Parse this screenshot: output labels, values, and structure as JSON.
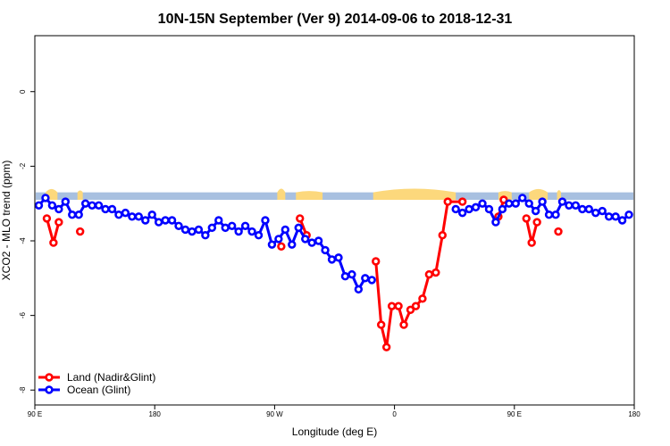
{
  "chart_data": {
    "type": "line",
    "title": "10N-15N September (Ver 9)   2014-09-06 to 2018-12-31",
    "xlabel": "Longitude (deg E)",
    "ylabel": "XCO2 - MLO trend (ppm)",
    "x_ticks": [
      {
        "x": 0,
        "label": "90 E"
      },
      {
        "x": 90,
        "label": "180"
      },
      {
        "x": 180,
        "label": "90 W"
      },
      {
        "x": 270,
        "label": "0"
      },
      {
        "x": 360,
        "label": "90 E"
      },
      {
        "x": 450,
        "label": "180"
      }
    ],
    "y_ticks": [
      0,
      -2,
      -4,
      -6,
      -8
    ],
    "xlim": [
      0,
      450
    ],
    "ylim": [
      -8.4,
      1.5
    ],
    "grid": false,
    "legend_placement": "bottom-left",
    "band": {
      "y_min": -2.9,
      "y_max": -2.7,
      "color": "#a8c0e0",
      "highlight_color": "#fcd87c",
      "highlight_segments": [
        [
          8,
          17,
          0.18
        ],
        [
          32,
          36,
          0.1
        ],
        [
          182,
          188,
          0.2
        ],
        [
          196,
          216,
          0.07
        ],
        [
          254,
          316,
          0.2
        ],
        [
          348,
          358,
          0.07
        ],
        [
          371,
          385,
          0.18
        ],
        [
          392,
          395,
          0.12
        ]
      ]
    },
    "series": [
      {
        "name": "Land (Nadir&Glint)",
        "color": "#ff0000",
        "segments": [
          [
            [
              9,
              -3.4
            ],
            [
              14,
              -4.05
            ],
            [
              18,
              -3.5
            ]
          ],
          [
            [
              34,
              -3.75
            ]
          ],
          [
            [
              185,
              -4.15
            ]
          ],
          [
            [
              199,
              -3.4
            ],
            [
              204,
              -3.85
            ]
          ],
          [
            [
              256,
              -4.55
            ],
            [
              260,
              -6.25
            ],
            [
              264,
              -6.85
            ],
            [
              268,
              -5.75
            ],
            [
              273,
              -5.75
            ],
            [
              277,
              -6.25
            ],
            [
              282,
              -5.85
            ],
            [
              286,
              -5.75
            ],
            [
              291,
              -5.55
            ],
            [
              296,
              -4.9
            ],
            [
              301,
              -4.85
            ],
            [
              306,
              -3.85
            ],
            [
              310,
              -2.95
            ],
            [
              321,
              -2.95
            ]
          ],
          [
            [
              348,
              -3.35
            ],
            [
              352,
              -2.9
            ]
          ],
          [
            [
              369,
              -3.4
            ],
            [
              373,
              -4.05
            ],
            [
              377,
              -3.5
            ]
          ],
          [
            [
              393,
              -3.75
            ]
          ]
        ]
      },
      {
        "name": "Ocean (Glint)",
        "color": "#0000ff",
        "segments": [
          [
            [
              3,
              -3.05
            ],
            [
              8,
              -2.85
            ],
            [
              13,
              -3.05
            ],
            [
              18,
              -3.15
            ],
            [
              23,
              -2.95
            ],
            [
              28,
              -3.3
            ],
            [
              33,
              -3.3
            ],
            [
              38,
              -3.0
            ],
            [
              43,
              -3.05
            ],
            [
              48,
              -3.05
            ],
            [
              53,
              -3.15
            ],
            [
              58,
              -3.15
            ],
            [
              63,
              -3.3
            ],
            [
              68,
              -3.25
            ],
            [
              73,
              -3.35
            ],
            [
              78,
              -3.35
            ],
            [
              83,
              -3.45
            ],
            [
              88,
              -3.3
            ],
            [
              93,
              -3.5
            ],
            [
              98,
              -3.45
            ],
            [
              103,
              -3.45
            ],
            [
              108,
              -3.6
            ],
            [
              113,
              -3.7
            ],
            [
              118,
              -3.75
            ],
            [
              123,
              -3.7
            ],
            [
              128,
              -3.85
            ],
            [
              133,
              -3.65
            ],
            [
              138,
              -3.45
            ],
            [
              143,
              -3.65
            ],
            [
              148,
              -3.6
            ],
            [
              153,
              -3.75
            ],
            [
              158,
              -3.6
            ],
            [
              163,
              -3.75
            ],
            [
              168,
              -3.85
            ],
            [
              173,
              -3.45
            ],
            [
              178,
              -4.1
            ],
            [
              183,
              -3.95
            ],
            [
              188,
              -3.7
            ],
            [
              193,
              -4.1
            ],
            [
              198,
              -3.65
            ],
            [
              203,
              -3.95
            ],
            [
              208,
              -4.05
            ],
            [
              213,
              -4.0
            ],
            [
              218,
              -4.25
            ],
            [
              223,
              -4.5
            ],
            [
              228,
              -4.45
            ],
            [
              233,
              -4.95
            ],
            [
              238,
              -4.9
            ],
            [
              243,
              -5.3
            ],
            [
              248,
              -5.0
            ],
            [
              253,
              -5.05
            ]
          ],
          [
            [
              316,
              -3.15
            ],
            [
              321,
              -3.25
            ],
            [
              326,
              -3.15
            ],
            [
              331,
              -3.1
            ],
            [
              336,
              -3.0
            ],
            [
              341,
              -3.15
            ],
            [
              346,
              -3.5
            ],
            [
              351,
              -3.15
            ],
            [
              356,
              -3.0
            ],
            [
              361,
              -3.0
            ],
            [
              366,
              -2.85
            ],
            [
              371,
              -3.0
            ],
            [
              376,
              -3.2
            ],
            [
              381,
              -2.95
            ],
            [
              386,
              -3.3
            ],
            [
              391,
              -3.3
            ],
            [
              396,
              -2.95
            ],
            [
              401,
              -3.05
            ],
            [
              406,
              -3.05
            ],
            [
              411,
              -3.15
            ],
            [
              416,
              -3.15
            ],
            [
              421,
              -3.25
            ],
            [
              426,
              -3.2
            ],
            [
              431,
              -3.35
            ],
            [
              436,
              -3.35
            ],
            [
              441,
              -3.45
            ],
            [
              446,
              -3.3
            ]
          ]
        ]
      }
    ]
  }
}
